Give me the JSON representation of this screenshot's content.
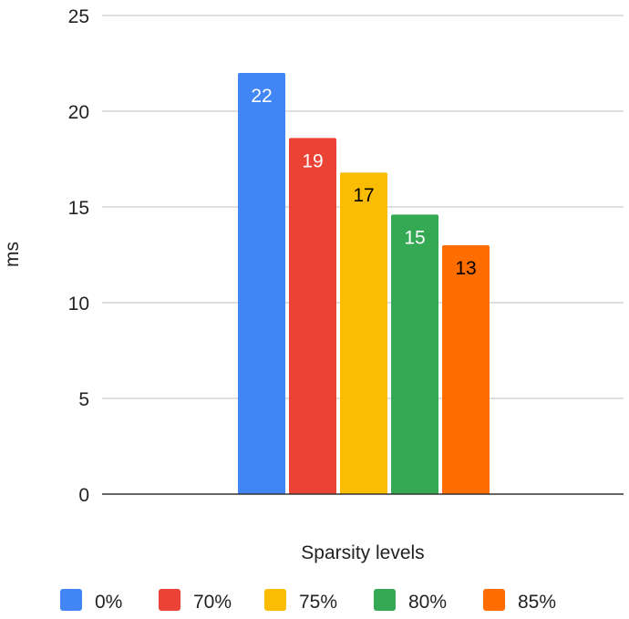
{
  "chart_data": {
    "type": "bar",
    "title": "",
    "xlabel": "Sparsity levels",
    "ylabel": "ms",
    "ylim": [
      0,
      25
    ],
    "yticks": [
      0,
      5,
      10,
      15,
      20,
      25
    ],
    "grid": true,
    "legend_position": "bottom",
    "categories": [
      ""
    ],
    "series": [
      {
        "name": "0%",
        "values": [
          22
        ],
        "label": "22",
        "color": "#4285F4",
        "label_color": "#ffffff"
      },
      {
        "name": "70%",
        "values": [
          18.6
        ],
        "label": "19",
        "color": "#EA4335",
        "label_color": "#ffffff"
      },
      {
        "name": "75%",
        "values": [
          16.8
        ],
        "label": "17",
        "color": "#FBBC04",
        "label_color": "#000000"
      },
      {
        "name": "80%",
        "values": [
          14.6
        ],
        "label": "15",
        "color": "#34A853",
        "label_color": "#ffffff"
      },
      {
        "name": "85%",
        "values": [
          13
        ],
        "label": "13",
        "color": "#FF6D01",
        "label_color": "#000000"
      }
    ]
  }
}
